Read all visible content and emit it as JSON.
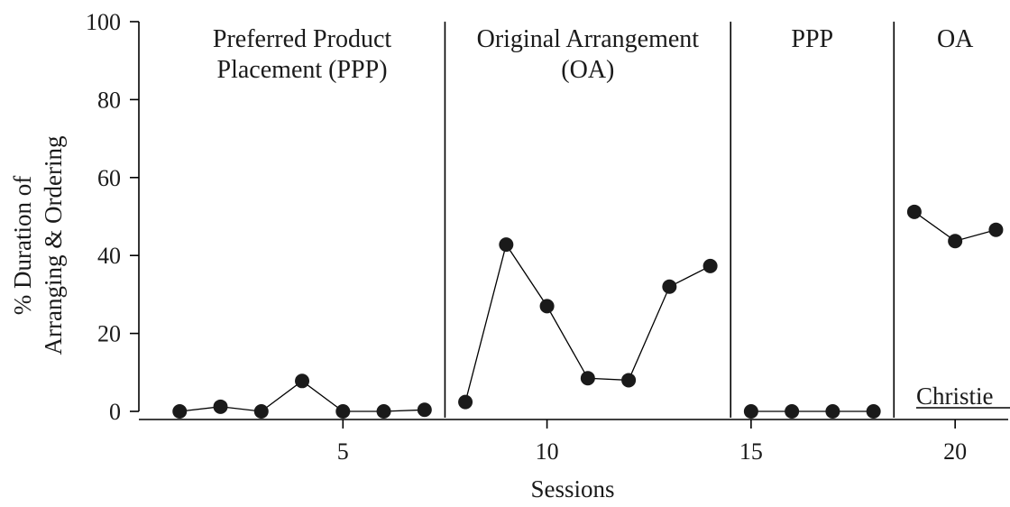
{
  "chart_data": {
    "type": "line",
    "title": "",
    "xlabel": "Sessions",
    "ylabel_lines": [
      "% Duration of",
      "Arranging & Ordering"
    ],
    "xlim": [
      0,
      21.3
    ],
    "ylim": [
      0,
      100
    ],
    "x_ticks": [
      5,
      10,
      15,
      20
    ],
    "y_ticks": [
      0,
      20,
      40,
      60,
      80,
      100
    ],
    "grid": false,
    "phase_change_after": [
      7.5,
      14.5,
      18.5
    ],
    "phases": [
      {
        "label_lines": [
          "Preferred Product",
          "Placement (PPP)"
        ],
        "x_range": [
          1,
          7
        ]
      },
      {
        "label_lines": [
          "Original Arrangement",
          "(OA)"
        ],
        "x_range": [
          8,
          14
        ]
      },
      {
        "label_lines": [
          "PPP"
        ],
        "x_range": [
          15,
          18
        ]
      },
      {
        "label_lines": [
          "OA"
        ],
        "x_range": [
          19,
          21
        ]
      }
    ],
    "participant_label": "Christie",
    "series": [
      {
        "segments": [
          {
            "x": [
              1,
              2,
              3,
              4,
              5,
              6,
              7
            ],
            "y": [
              0,
              1.2,
              0,
              7.8,
              0,
              0,
              0.4
            ]
          },
          {
            "x": [
              8,
              9,
              10,
              11,
              12,
              13,
              14
            ],
            "y": [
              2.4,
              42.8,
              27,
              8.5,
              8,
              32,
              37.3
            ]
          },
          {
            "x": [
              15,
              16,
              17,
              18
            ],
            "y": [
              0,
              0,
              0,
              0
            ]
          },
          {
            "x": [
              19,
              20,
              21
            ],
            "y": [
              51.2,
              43.7,
              46.6
            ]
          }
        ]
      }
    ]
  }
}
